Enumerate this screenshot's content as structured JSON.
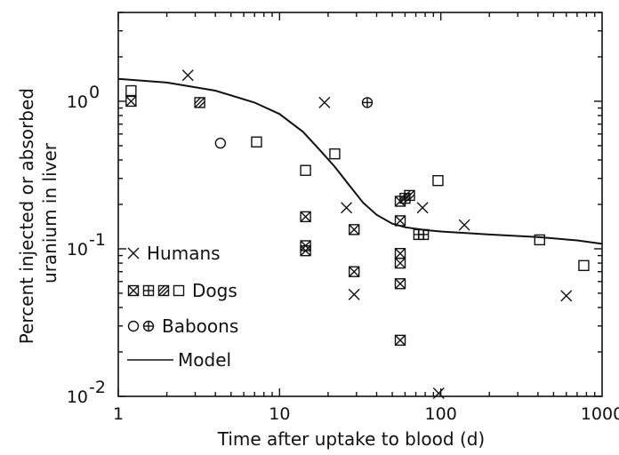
{
  "chart_data": {
    "type": "scatter",
    "title": "",
    "xlabel": "Time after uptake to blood (d)",
    "ylabel_lines": [
      "Percent injected or absorbed",
      "uranium in liver"
    ],
    "xscale": "log",
    "yscale": "log",
    "xlim": [
      1,
      1000
    ],
    "ylim": [
      0.01,
      4
    ],
    "grid": false,
    "legend_position": "bottom-left",
    "x_ticks": [
      {
        "value": 1,
        "label": "1"
      },
      {
        "value": 10,
        "label": "10"
      },
      {
        "value": 100,
        "label": "100"
      },
      {
        "value": 1000,
        "label": "1000"
      }
    ],
    "y_ticks": [
      {
        "value": 0.01,
        "base": "10",
        "exp": "-2"
      },
      {
        "value": 0.1,
        "base": "10",
        "exp": "-1"
      },
      {
        "value": 1,
        "base": "10",
        "exp": "0"
      }
    ],
    "legend": [
      {
        "label": "Humans",
        "markers": [
          "x"
        ]
      },
      {
        "label": "Dogs",
        "markers": [
          "boxx",
          "boxplus",
          "boxslash",
          "box"
        ]
      },
      {
        "label": "Baboons",
        "markers": [
          "circle",
          "circleplus"
        ]
      },
      {
        "label": "Model",
        "markers": [
          "line"
        ]
      }
    ],
    "series": [
      {
        "name": "Humans",
        "marker": "x",
        "points": [
          [
            2.7,
            1.5
          ],
          [
            19,
            0.98
          ],
          [
            26,
            0.19
          ],
          [
            29,
            0.049
          ],
          [
            77,
            0.19
          ],
          [
            97,
            0.0105
          ],
          [
            140,
            0.145
          ],
          [
            600,
            0.048
          ]
        ]
      },
      {
        "name": "Dogs",
        "marker": "box",
        "points": [
          [
            1.2,
            1.18
          ],
          [
            7.2,
            0.53
          ],
          [
            14.5,
            0.34
          ],
          [
            22,
            0.44
          ],
          [
            96,
            0.29
          ],
          [
            410,
            0.115
          ],
          [
            770,
            0.077
          ]
        ]
      },
      {
        "name": "Dogs",
        "marker": "boxx",
        "points": [
          [
            1.2,
            1.0
          ],
          [
            14.5,
            0.165
          ],
          [
            14.5,
            0.105
          ],
          [
            14.5,
            0.097
          ],
          [
            29,
            0.135
          ],
          [
            29,
            0.07
          ],
          [
            56,
            0.21
          ],
          [
            56,
            0.155
          ],
          [
            56,
            0.093
          ],
          [
            56,
            0.08
          ],
          [
            56,
            0.058
          ],
          [
            56,
            0.024
          ]
        ]
      },
      {
        "name": "Dogs",
        "marker": "boxplus",
        "points": [
          [
            73,
            0.125
          ],
          [
            78,
            0.125
          ]
        ]
      },
      {
        "name": "Dogs",
        "marker": "boxslash",
        "points": [
          [
            3.2,
            0.98
          ],
          [
            60,
            0.22
          ],
          [
            64,
            0.23
          ]
        ]
      },
      {
        "name": "Baboons",
        "marker": "circle",
        "points": [
          [
            4.3,
            0.52
          ]
        ]
      },
      {
        "name": "Baboons",
        "marker": "circleplus",
        "points": [
          [
            35,
            0.98
          ]
        ]
      },
      {
        "name": "Model",
        "marker": "line",
        "points": [
          [
            1,
            1.42
          ],
          [
            2,
            1.34
          ],
          [
            4,
            1.18
          ],
          [
            7,
            0.98
          ],
          [
            10,
            0.82
          ],
          [
            14,
            0.62
          ],
          [
            18,
            0.46
          ],
          [
            22,
            0.36
          ],
          [
            27,
            0.27
          ],
          [
            33,
            0.205
          ],
          [
            40,
            0.17
          ],
          [
            50,
            0.148
          ],
          [
            60,
            0.14
          ],
          [
            80,
            0.134
          ],
          [
            100,
            0.131
          ],
          [
            200,
            0.125
          ],
          [
            400,
            0.12
          ],
          [
            700,
            0.114
          ],
          [
            1000,
            0.108
          ]
        ]
      }
    ]
  }
}
